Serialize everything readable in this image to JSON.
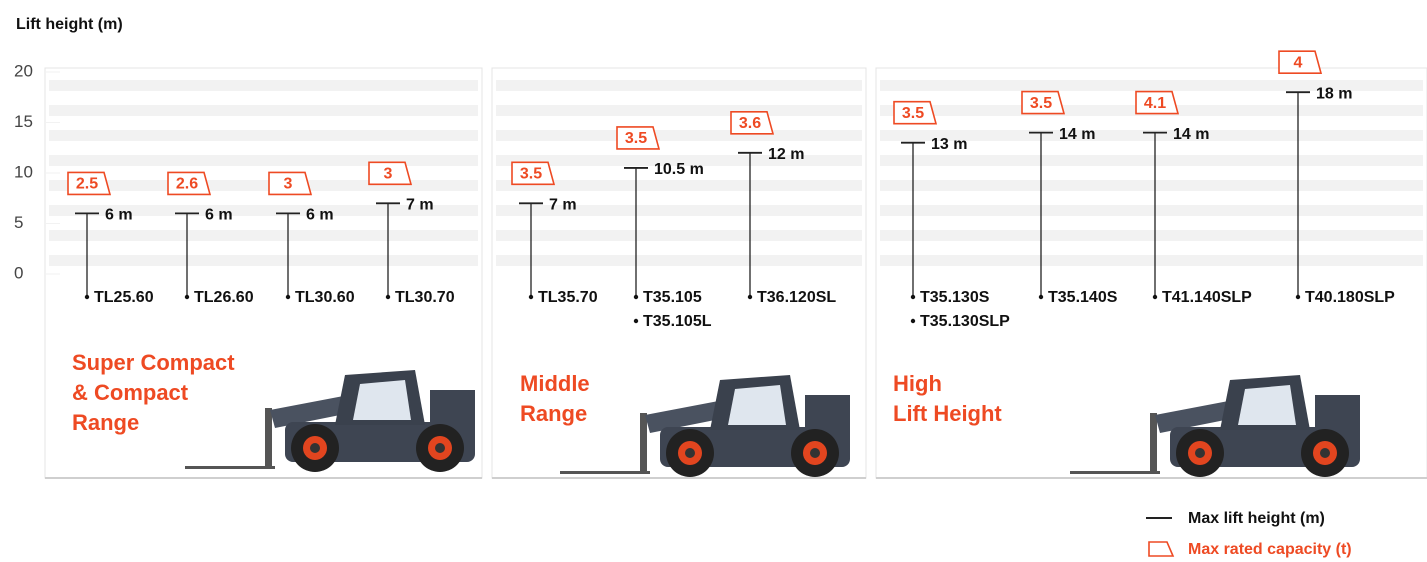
{
  "chart_data": {
    "type": "lift",
    "y_label": "Lift height (m)",
    "ylim": [
      0,
      20
    ],
    "yticks": [
      0,
      5,
      10,
      15,
      20
    ],
    "line_color": "#222222",
    "capacity_color": "#ee4a23",
    "groups": [
      {
        "name_lines": [
          "Super Compact",
          "& Compact",
          "Range"
        ],
        "categories": [
          [
            "TL25.60"
          ],
          [
            "TL26.60"
          ],
          [
            "TL30.60"
          ],
          [
            "TL30.70"
          ]
        ],
        "values": [
          6,
          6,
          6,
          7
        ],
        "value_labels": [
          "6 m",
          "6 m",
          "6 m",
          "7 m"
        ],
        "capacities": [
          2.5,
          2.6,
          3,
          3
        ]
      },
      {
        "name_lines": [
          "Middle",
          "Range"
        ],
        "categories": [
          [
            "TL35.70"
          ],
          [
            "T35.105",
            "T35.105L"
          ],
          [
            "T36.120SL"
          ]
        ],
        "values": [
          7,
          10.5,
          12
        ],
        "value_labels": [
          "7 m",
          "10.5 m",
          "12 m"
        ],
        "capacities": [
          3.5,
          3.5,
          3.6
        ]
      },
      {
        "name_lines": [
          "High",
          "Lift Height"
        ],
        "categories": [
          [
            "T35.130S",
            "T35.130SLP"
          ],
          [
            "T35.140S"
          ],
          [
            "T41.140SLP"
          ],
          [
            "T40.180SLP"
          ]
        ],
        "values": [
          13,
          14,
          14,
          18
        ],
        "value_labels": [
          "13 m",
          "14 m",
          "14 m",
          "18 m"
        ],
        "capacities": [
          3.5,
          3.5,
          4.1,
          4
        ]
      }
    ],
    "legend": {
      "height": "Max lift height (m)",
      "capacity": "Max rated capacity (t)"
    }
  }
}
